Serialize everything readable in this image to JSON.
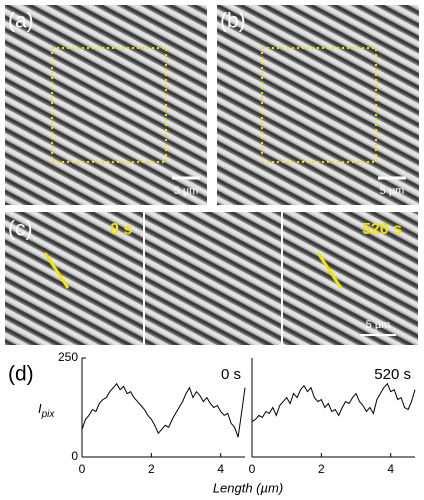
{
  "panels": {
    "a": {
      "label": "(a)",
      "scale_bar": "5 µm"
    },
    "b": {
      "label": "(b)",
      "scale_bar": "5 µm"
    },
    "c": {
      "label": "(c)",
      "times": [
        "0 s",
        "520 s"
      ],
      "scale_bar": "5 µm"
    },
    "d": {
      "label": "(d)",
      "y_label": "I",
      "y_label_sub": "pix",
      "x_label": "Length (µm)"
    }
  },
  "chart_data": [
    {
      "type": "line",
      "annotation": "0 s",
      "color": "#000000",
      "x": [
        0,
        0.1,
        0.2,
        0.3,
        0.4,
        0.5,
        0.6,
        0.7,
        0.8,
        0.9,
        1.0,
        1.1,
        1.2,
        1.3,
        1.4,
        1.5,
        1.6,
        1.7,
        1.8,
        1.9,
        2.0,
        2.1,
        2.2,
        2.3,
        2.4,
        2.5,
        2.6,
        2.7,
        2.8,
        2.9,
        3.0,
        3.1,
        3.2,
        3.3,
        3.4,
        3.5,
        3.6,
        3.7,
        3.8,
        3.9,
        4.0,
        4.1,
        4.2,
        4.3,
        4.4,
        4.5,
        4.6,
        4.7
      ],
      "values": [
        70,
        95,
        105,
        120,
        115,
        135,
        145,
        150,
        165,
        175,
        185,
        170,
        178,
        160,
        165,
        150,
        140,
        130,
        120,
        105,
        95,
        80,
        60,
        70,
        80,
        75,
        95,
        110,
        125,
        140,
        160,
        175,
        150,
        165,
        155,
        140,
        150,
        135,
        125,
        130,
        115,
        105,
        110,
        85,
        75,
        50,
        110,
        175
      ],
      "xlim": [
        0,
        4.7
      ],
      "ylim": [
        0,
        250
      ],
      "xticks": [
        0,
        2,
        4
      ],
      "yticks": [
        0,
        250
      ]
    },
    {
      "type": "line",
      "annotation": "520 s",
      "color": "#000000",
      "x": [
        0,
        0.1,
        0.2,
        0.3,
        0.4,
        0.5,
        0.6,
        0.7,
        0.8,
        0.9,
        1.0,
        1.1,
        1.2,
        1.3,
        1.4,
        1.5,
        1.6,
        1.7,
        1.8,
        1.9,
        2.0,
        2.1,
        2.2,
        2.3,
        2.4,
        2.5,
        2.6,
        2.7,
        2.8,
        2.9,
        3.0,
        3.1,
        3.2,
        3.3,
        3.4,
        3.5,
        3.6,
        3.7,
        3.8,
        3.9,
        4.0,
        4.1,
        4.2,
        4.3,
        4.4,
        4.5,
        4.6,
        4.7
      ],
      "values": [
        90,
        95,
        105,
        100,
        115,
        110,
        125,
        105,
        130,
        140,
        150,
        135,
        160,
        150,
        170,
        180,
        165,
        175,
        150,
        140,
        145,
        125,
        135,
        115,
        120,
        105,
        125,
        140,
        135,
        150,
        160,
        140,
        130,
        115,
        125,
        110,
        145,
        160,
        175,
        185,
        165,
        170,
        145,
        150,
        125,
        120,
        140,
        170
      ],
      "xlim": [
        0,
        4.7
      ],
      "ylim": [
        0,
        250
      ],
      "xticks": [
        0,
        2,
        4
      ]
    }
  ]
}
